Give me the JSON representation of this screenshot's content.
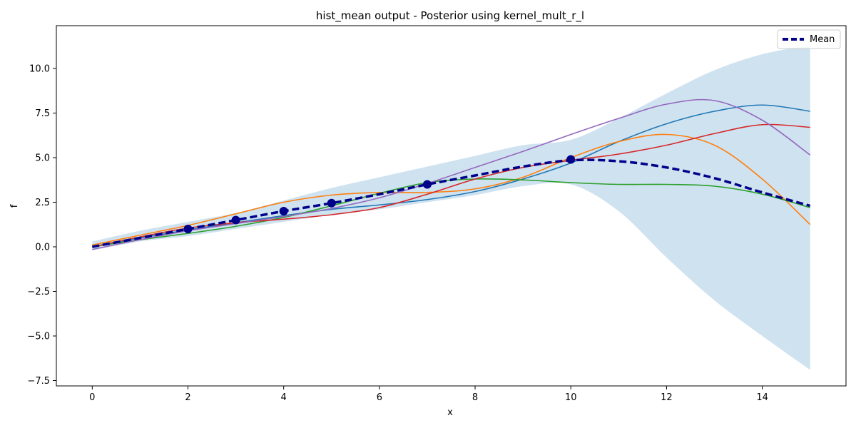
{
  "chart_data": {
    "type": "line",
    "title": "hist_mean output - Posterior using kernel_mult_r_l",
    "xlabel": "x",
    "ylabel": "f",
    "xlim": [
      -0.75,
      15.75
    ],
    "ylim": [
      -7.8,
      12.4
    ],
    "xticks": [
      0,
      2,
      4,
      6,
      8,
      10,
      12,
      14
    ],
    "xtick_labels": [
      "0",
      "2",
      "4",
      "6",
      "8",
      "10",
      "12",
      "14"
    ],
    "yticks": [
      -7.5,
      -5.0,
      -2.5,
      0.0,
      2.5,
      5.0,
      7.5,
      10.0
    ],
    "ytick_labels": [
      "−7.5",
      "−5.0",
      "−2.5",
      "0.0",
      "2.5",
      "5.0",
      "7.5",
      "10.0"
    ],
    "grid": false,
    "legend": {
      "placement": "top-right",
      "entries": [
        "Mean"
      ]
    },
    "confidence_band": {
      "color": "#cfe2f0",
      "x": [
        0,
        1,
        2,
        3,
        4,
        5,
        6,
        7,
        8,
        9,
        10,
        11,
        12,
        13,
        14,
        15
      ],
      "lower": [
        -0.2,
        0.3,
        0.6,
        1.0,
        1.4,
        1.8,
        2.1,
        2.5,
        2.9,
        3.4,
        3.5,
        2.0,
        -0.6,
        -3.0,
        -5.0,
        -6.9
      ],
      "upper": [
        0.3,
        0.9,
        1.4,
        1.9,
        2.6,
        3.3,
        3.9,
        4.5,
        5.1,
        5.7,
        6.0,
        7.2,
        8.6,
        9.9,
        10.8,
        11.3
      ]
    },
    "mean": {
      "name": "Mean",
      "color": "#00008b",
      "x": [
        0,
        1,
        2,
        3,
        4,
        5,
        6,
        7,
        8,
        9,
        10,
        11,
        12,
        13,
        14,
        15
      ],
      "y": [
        0.0,
        0.5,
        1.0,
        1.5,
        2.0,
        2.45,
        2.95,
        3.5,
        4.0,
        4.5,
        4.85,
        4.8,
        4.45,
        3.85,
        3.05,
        2.3
      ]
    },
    "observations": {
      "color": "#00008b",
      "x": [
        2,
        3,
        4,
        5,
        7,
        10
      ],
      "y": [
        1.0,
        1.5,
        2.0,
        2.45,
        3.5,
        4.9
      ]
    },
    "series": [
      {
        "color": "#1f77b4",
        "x": [
          0,
          1,
          2,
          3,
          4,
          5,
          6,
          7,
          8,
          9,
          10,
          11,
          12,
          13,
          14,
          15
        ],
        "y": [
          0.0,
          0.5,
          0.95,
          1.35,
          1.75,
          2.1,
          2.35,
          2.65,
          3.1,
          3.8,
          4.7,
          5.9,
          6.9,
          7.6,
          7.95,
          7.6
        ]
      },
      {
        "color": "#ff7f0e",
        "x": [
          0,
          1,
          2,
          3,
          4,
          5,
          6,
          7,
          8,
          9,
          10,
          11,
          12,
          13,
          14,
          15
        ],
        "y": [
          0.1,
          0.65,
          1.2,
          1.85,
          2.5,
          2.9,
          3.05,
          3.05,
          3.25,
          3.9,
          5.0,
          5.9,
          6.3,
          5.7,
          3.8,
          1.25
        ]
      },
      {
        "color": "#2ca02c",
        "x": [
          0,
          1,
          2,
          3,
          4,
          5,
          6,
          7,
          8,
          9,
          10,
          11,
          12,
          13,
          14,
          15
        ],
        "y": [
          0.0,
          0.4,
          0.75,
          1.15,
          1.65,
          2.3,
          3.0,
          3.6,
          3.8,
          3.75,
          3.6,
          3.5,
          3.5,
          3.4,
          2.95,
          2.2
        ]
      },
      {
        "color": "#d62728",
        "x": [
          0,
          1,
          2,
          3,
          4,
          5,
          6,
          7,
          8,
          9,
          10,
          11,
          12,
          13,
          14,
          15
        ],
        "y": [
          0.0,
          0.55,
          1.05,
          1.35,
          1.55,
          1.8,
          2.2,
          2.95,
          3.8,
          4.45,
          4.85,
          5.2,
          5.7,
          6.35,
          6.85,
          6.7
        ]
      },
      {
        "color": "#9467bd",
        "x": [
          0,
          1,
          2,
          3,
          4,
          5,
          6,
          7,
          8,
          9,
          10,
          11,
          12,
          13,
          14,
          15
        ],
        "y": [
          -0.15,
          0.4,
          0.9,
          1.3,
          1.7,
          2.15,
          2.75,
          3.55,
          4.45,
          5.35,
          6.3,
          7.2,
          8.0,
          8.2,
          7.1,
          5.15
        ]
      }
    ]
  }
}
